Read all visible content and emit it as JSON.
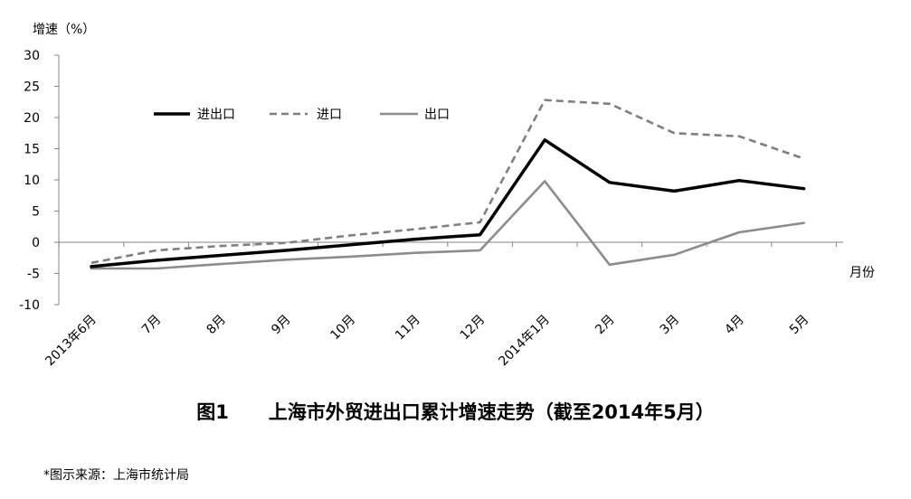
{
  "chart_data": {
    "type": "line",
    "ylabel": "增速（%）",
    "xlabel": "月份",
    "ylim": [
      -10,
      30
    ],
    "yticks": [
      "30",
      "25",
      "20",
      "15",
      "10",
      "5",
      "0",
      "-5",
      "-10"
    ],
    "categories": [
      "2013年6月",
      "7月",
      "8月",
      "9月",
      "10月",
      "11月",
      "12月",
      "2014年1月",
      "2月",
      "3月",
      "4月",
      "5月"
    ],
    "series": [
      {
        "name": "进出口",
        "color": "#000000",
        "style": "solid",
        "values": [
          -3.9,
          -2.9,
          -2.1,
          -1.3,
          -0.4,
          0.5,
          1.2,
          16.4,
          9.6,
          8.2,
          9.9,
          8.6
        ]
      },
      {
        "name": "进口",
        "color": "#7f7f7f",
        "style": "dashed",
        "values": [
          -3.3,
          -1.3,
          -0.6,
          -0.1,
          1.1,
          2.1,
          3.2,
          22.8,
          22.2,
          17.5,
          17.0,
          13.4
        ]
      },
      {
        "name": "出口",
        "color": "#8c8c8c",
        "style": "solid",
        "values": [
          -4.2,
          -4.2,
          -3.5,
          -2.8,
          -2.3,
          -1.7,
          -1.3,
          9.8,
          -3.6,
          -2.0,
          1.6,
          3.1
        ]
      }
    ],
    "legend_position": "top-left",
    "grid": false
  },
  "caption": "图1      上海市外贸进出口累计增速走势（截至2014年5月）",
  "source_note": "*图示来源：上海市统计局"
}
